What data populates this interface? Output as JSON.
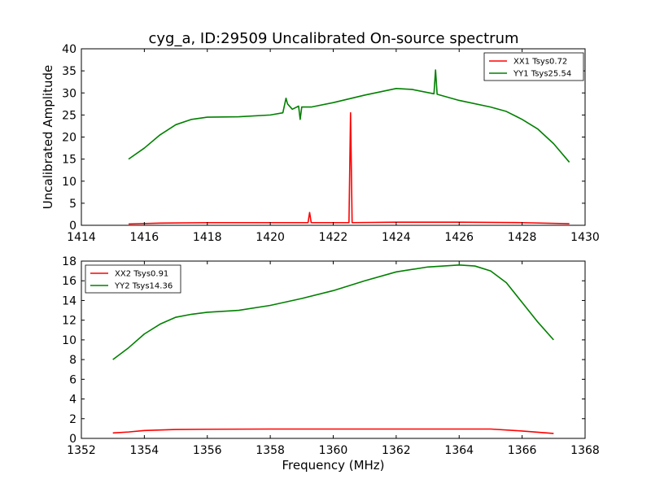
{
  "title": "cyg_a, ID:29509 Uncalibrated On-source spectrum",
  "chart_data": [
    {
      "type": "line",
      "title": "cyg_a, ID:29509 Uncalibrated On-source spectrum",
      "xlabel": "",
      "ylabel": "Uncalibrated Amplitude",
      "xlim": [
        1414,
        1430
      ],
      "ylim": [
        0,
        40
      ],
      "xticks": [
        "1414",
        "1416",
        "1418",
        "1420",
        "1422",
        "1424",
        "1426",
        "1428",
        "1430"
      ],
      "yticks": [
        "0",
        "5",
        "10",
        "15",
        "20",
        "25",
        "30",
        "35",
        "40"
      ],
      "grid": false,
      "legend_position": "top-right",
      "series": [
        {
          "name": "XX1 Tsys0.72",
          "color": "#ff0000",
          "x": [
            1415.5,
            1416.5,
            1418,
            1420,
            1421.2,
            1421.25,
            1421.3,
            1422.5,
            1422.55,
            1422.6,
            1424,
            1426,
            1428,
            1429.5
          ],
          "y": [
            0.3,
            0.5,
            0.6,
            0.6,
            0.6,
            2.9,
            0.6,
            0.6,
            25.5,
            0.6,
            0.7,
            0.7,
            0.6,
            0.35
          ]
        },
        {
          "name": "YY1 Tsys25.54",
          "color": "#008000",
          "x": [
            1415.5,
            1416,
            1416.5,
            1417,
            1417.5,
            1418,
            1419,
            1420,
            1420.4,
            1420.5,
            1420.55,
            1420.7,
            1420.9,
            1420.95,
            1421.0,
            1421.3,
            1422,
            1423,
            1424,
            1424.5,
            1425.2,
            1425.25,
            1425.3,
            1426,
            1427,
            1427.5,
            1428,
            1428.5,
            1429,
            1429.5
          ],
          "y": [
            15,
            17.5,
            20.5,
            22.8,
            24.0,
            24.5,
            24.6,
            25.0,
            25.5,
            28.8,
            27.5,
            26.3,
            27.0,
            24.0,
            26.8,
            26.8,
            27.8,
            29.5,
            31.0,
            30.8,
            29.8,
            35.2,
            29.7,
            28.3,
            26.8,
            25.8,
            24.0,
            21.8,
            18.5,
            14.3
          ]
        }
      ]
    },
    {
      "type": "line",
      "title": "",
      "xlabel": "Frequency (MHz)",
      "ylabel": "",
      "xlim": [
        1352,
        1368
      ],
      "ylim": [
        0,
        18
      ],
      "xticks": [
        "1352",
        "1354",
        "1356",
        "1358",
        "1360",
        "1362",
        "1364",
        "1366",
        "1368"
      ],
      "yticks": [
        "0",
        "2",
        "4",
        "6",
        "8",
        "10",
        "12",
        "14",
        "16",
        "18"
      ],
      "grid": false,
      "legend_position": "top-left",
      "series": [
        {
          "name": "XX2 Tsys0.91",
          "color": "#ff0000",
          "x": [
            1353,
            1353.5,
            1354,
            1355,
            1356,
            1358,
            1360,
            1362,
            1364,
            1365,
            1366,
            1367
          ],
          "y": [
            0.55,
            0.65,
            0.8,
            0.9,
            0.93,
            0.95,
            0.95,
            0.95,
            0.95,
            0.95,
            0.75,
            0.5
          ]
        },
        {
          "name": "YY2 Tsys14.36",
          "color": "#008000",
          "x": [
            1353,
            1353.5,
            1354,
            1354.5,
            1355,
            1355.5,
            1356,
            1357,
            1358,
            1359,
            1360,
            1361,
            1362,
            1363,
            1364,
            1364.5,
            1365,
            1365.5,
            1366,
            1366.5,
            1367
          ],
          "y": [
            8.0,
            9.2,
            10.6,
            11.6,
            12.3,
            12.6,
            12.8,
            13.0,
            13.5,
            14.2,
            15.0,
            16.0,
            16.9,
            17.4,
            17.6,
            17.5,
            17.0,
            15.8,
            13.8,
            11.8,
            10.0
          ]
        }
      ]
    }
  ]
}
